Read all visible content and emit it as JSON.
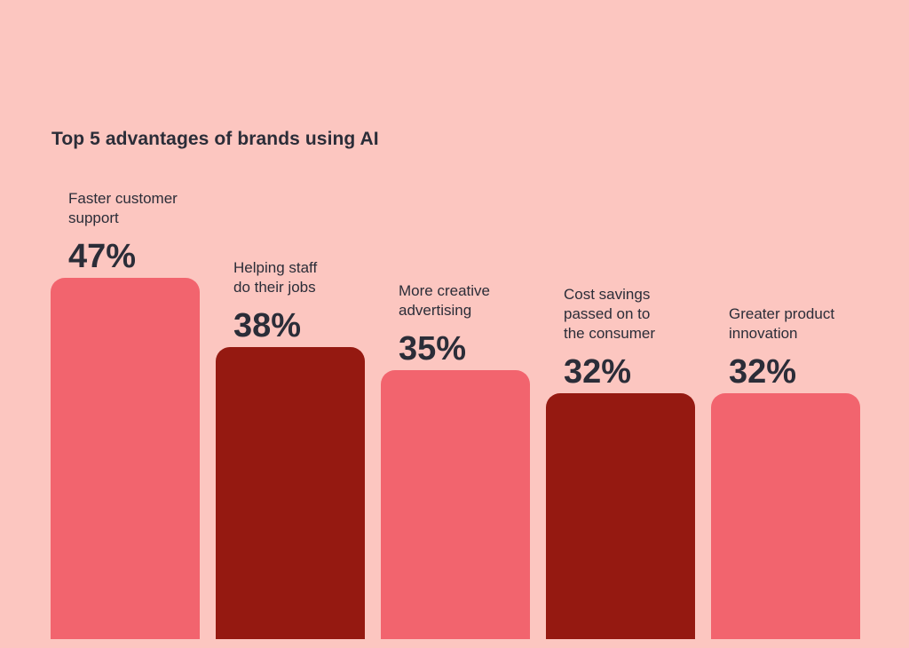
{
  "chart_data": {
    "type": "bar",
    "title": "Top 5 advantages of brands using AI",
    "xlabel": "",
    "ylabel": "",
    "ylim": [
      0,
      50
    ],
    "unit": "%",
    "categories": [
      "Faster customer\nsupport",
      "Helping staff\ndo their jobs",
      "More creative\nadvertising",
      "Cost savings\npassed on to\nthe consumer",
      "Greater product\ninnovation"
    ],
    "values": [
      47,
      38,
      35,
      32,
      32
    ],
    "value_labels": [
      "47%",
      "38%",
      "35%",
      "32%",
      "32%"
    ],
    "colors": [
      "#f2646e",
      "#951911",
      "#f2646e",
      "#951911",
      "#f2646e"
    ]
  }
}
